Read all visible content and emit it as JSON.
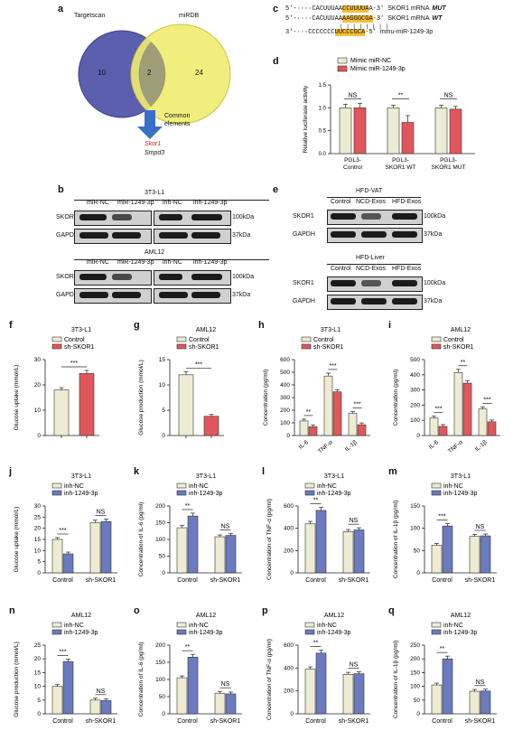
{
  "a": {
    "label": "a",
    "venn_left": "Targetscan",
    "venn_right": "miRDB",
    "left_only": "10",
    "overlap": "2",
    "right_only": "24",
    "arrow_label": "Common\nelements",
    "gene1": "Skor1",
    "gene2": "Smpd3"
  },
  "c": {
    "label": "c",
    "rows": [
      {
        "prime5": "5'-",
        "seq_pre": "····CACUUUAA",
        "seq_hl": "CCUUUUA",
        "seq_post": "A",
        "prime3": "-3'",
        "name": "SKOR1 mRNA",
        "tag": "MUT"
      },
      {
        "prime5": "5'-",
        "seq_pre": "····CACUUUAA",
        "seq_hl": "AAGGGCGA",
        "seq_post": "",
        "prime3": "-3'",
        "name": "SKOR1 mRNA",
        "tag": "WT"
      },
      {
        "prime5": "3'-",
        "seq_pre": "···CCCCCCC",
        "seq_hl": "UUCCCGCA",
        "seq_post": "",
        "prime3": "-5'",
        "name": "mmu-miR-1249-3p",
        "tag": ""
      }
    ],
    "pairs": "| | | | | | | |"
  },
  "d": {
    "label": "d",
    "legend": [
      "Mimic miR-NC",
      "Mimic miR-1249-3p"
    ],
    "ylabel": "Relative luciferase activity",
    "yticks": [
      "0.0",
      "0.5",
      "1.0",
      "1.5"
    ],
    "sig": [
      "NS",
      "**",
      "NS"
    ],
    "groups": [
      "PGL3-\nControl",
      "PGL3-\nSKOR1 WT",
      "PGL3-\nSKOR1 MUT"
    ]
  },
  "b": {
    "label": "b",
    "cell1": "3T3-L1",
    "cell2": "AML12",
    "lanes_left": [
      "miR-NC",
      "miR-1249-3p"
    ],
    "lanes_right": [
      "inh-NC",
      "inh-1249-3p"
    ],
    "row1": "SKOR1",
    "row2": "GAPDH",
    "kda1": "100kDa",
    "kda2": "37kDa"
  },
  "e": {
    "label": "e",
    "tissue1": "HFD-VAT",
    "tissue2": "HFD-Liver",
    "lanes": [
      "Control",
      "NCD-Exos",
      "HFD-Exos"
    ],
    "row1": "SKOR1",
    "row2": "GAPDH",
    "kda1": "100kDa",
    "kda2": "37kDa"
  },
  "colors": {
    "control": "#eeebd3",
    "sh": "#e0575b",
    "inhnc": "#efebd2",
    "inh": "#6a7bbf",
    "venn_left": "#5b5fae",
    "venn_right": "#f0ec70",
    "seq_highlight": "#f6bf38",
    "gene_red": "#d42020"
  },
  "chart_data": [
    {
      "panel": "f",
      "type": "bar",
      "title": "3T3-L1",
      "ylabel": "Glucose uptake (mmol/L)",
      "ylim": [
        0,
        30
      ],
      "yticks": [
        0,
        10,
        20,
        30
      ],
      "legend": [
        "Control",
        "sh-SKOR1"
      ],
      "series": [
        {
          "name": "Control",
          "values": [
            18
          ]
        },
        {
          "name": "sh-SKOR1",
          "values": [
            24.5
          ]
        }
      ],
      "sig": [
        "***"
      ]
    },
    {
      "panel": "g",
      "type": "bar",
      "title": "AML12",
      "ylabel": "Glucose production (mmol/L)",
      "ylim": [
        0,
        15
      ],
      "yticks": [
        0,
        5,
        10,
        15
      ],
      "legend": [
        "Control",
        "sh-SKOR1"
      ],
      "series": [
        {
          "name": "Control",
          "values": [
            12
          ]
        },
        {
          "name": "sh-SKOR1",
          "values": [
            3.8
          ]
        }
      ],
      "sig": [
        "***"
      ]
    },
    {
      "panel": "h",
      "type": "bar",
      "title": "3T3-L1",
      "ylabel": "Concentration (pg/ml)",
      "ylim": [
        0,
        600
      ],
      "yticks": [
        0,
        100,
        200,
        300,
        400,
        500,
        600
      ],
      "legend": [
        "Control",
        "sh-SKOR1"
      ],
      "categories": [
        "IL-6",
        "TNF-α",
        "IL-1β"
      ],
      "series": [
        {
          "name": "Control",
          "values": [
            115,
            470,
            175
          ]
        },
        {
          "name": "sh-SKOR1",
          "values": [
            70,
            345,
            85
          ]
        }
      ],
      "sig": [
        "**",
        "***",
        "***"
      ]
    },
    {
      "panel": "i",
      "type": "bar",
      "title": "AML12",
      "ylabel": "Concentration (pg/ml)",
      "ylim": [
        0,
        500
      ],
      "yticks": [
        0,
        100,
        200,
        300,
        400,
        500
      ],
      "legend": [
        "Control",
        "sh-SKOR1"
      ],
      "categories": [
        "IL-6",
        "TNF-α",
        "IL-1β"
      ],
      "series": [
        {
          "name": "Control",
          "values": [
            115,
            415,
            175
          ]
        },
        {
          "name": "sh-SKOR1",
          "values": [
            60,
            345,
            90
          ]
        }
      ],
      "sig": [
        "***",
        "**",
        "***"
      ]
    },
    {
      "panel": "j",
      "type": "bar",
      "title": "3T3-L1",
      "ylabel": "Glucose uptake (mmol/L)",
      "ylim": [
        0,
        30
      ],
      "yticks": [
        0,
        5,
        10,
        15,
        20,
        25,
        30
      ],
      "legend": [
        "inh-NC",
        "inh-1249-3p"
      ],
      "categories": [
        "Control",
        "sh-SKOR1"
      ],
      "series": [
        {
          "name": "inh-NC",
          "values": [
            15,
            22.5
          ]
        },
        {
          "name": "inh-1249-3p",
          "values": [
            8.5,
            23
          ]
        }
      ],
      "sig": [
        "***",
        "NS"
      ]
    },
    {
      "panel": "k",
      "type": "bar",
      "title": "3T3-L1",
      "ylabel": "Concentration of IL-6 (pg/ml)",
      "ylim": [
        0,
        200
      ],
      "yticks": [
        0,
        50,
        100,
        150,
        200
      ],
      "legend": [
        "inh-NC",
        "inh-1249-3p"
      ],
      "categories": [
        "Control",
        "sh-SKOR1"
      ],
      "series": [
        {
          "name": "inh-NC",
          "values": [
            135,
            108
          ]
        },
        {
          "name": "inh-1249-3p",
          "values": [
            170,
            112
          ]
        }
      ],
      "sig": [
        "**",
        "NS"
      ]
    },
    {
      "panel": "l",
      "type": "bar",
      "title": "3T3-L1",
      "ylabel": "Concentration of TNF-α (pg/ml)",
      "ylim": [
        0,
        600
      ],
      "yticks": [
        0,
        200,
        400,
        600
      ],
      "legend": [
        "inh-NC",
        "inh-1249-3p"
      ],
      "categories": [
        "Control",
        "sh-SKOR1"
      ],
      "series": [
        {
          "name": "inh-NC",
          "values": [
            440,
            370
          ]
        },
        {
          "name": "inh-1249-3p",
          "values": [
            560,
            385
          ]
        }
      ],
      "sig": [
        "**",
        "NS"
      ]
    },
    {
      "panel": "m",
      "type": "bar",
      "title": "3T3-L1",
      "ylabel": "Concentration of IL-1β (pg/ml)",
      "ylim": [
        0,
        150
      ],
      "yticks": [
        0,
        50,
        100,
        150
      ],
      "legend": [
        "inh-NC",
        "inh-1249-3p"
      ],
      "categories": [
        "Control",
        "sh-SKOR1"
      ],
      "series": [
        {
          "name": "inh-NC",
          "values": [
            62,
            82
          ]
        },
        {
          "name": "inh-1249-3p",
          "values": [
            105,
            83
          ]
        }
      ],
      "sig": [
        "***",
        "NS"
      ]
    },
    {
      "panel": "n",
      "type": "bar",
      "title": "AML12",
      "ylabel": "Glucose production (mmol/L)",
      "ylim": [
        0,
        25
      ],
      "yticks": [
        0,
        5,
        10,
        15,
        20,
        25
      ],
      "legend": [
        "inh-NC",
        "inh-1249-3p"
      ],
      "categories": [
        "Control",
        "sh-SKOR1"
      ],
      "series": [
        {
          "name": "inh-NC",
          "values": [
            10,
            5
          ]
        },
        {
          "name": "inh-1249-3p",
          "values": [
            19,
            4.8
          ]
        }
      ],
      "sig": [
        "***",
        "NS"
      ]
    },
    {
      "panel": "o",
      "type": "bar",
      "title": "AML12",
      "ylabel": "Concentration of IL-6 (pg/ml)",
      "ylim": [
        0,
        200
      ],
      "yticks": [
        0,
        50,
        100,
        150,
        200
      ],
      "legend": [
        "inh-NC",
        "inh-1249-3p"
      ],
      "categories": [
        "Control",
        "sh-SKOR1"
      ],
      "series": [
        {
          "name": "inh-NC",
          "values": [
            105,
            60
          ]
        },
        {
          "name": "inh-1249-3p",
          "values": [
            165,
            58
          ]
        }
      ],
      "sig": [
        "**",
        "NS"
      ]
    },
    {
      "panel": "p",
      "type": "bar",
      "title": "AML12",
      "ylabel": "Concentration of TNF-α (pg/ml)",
      "ylim": [
        0,
        600
      ],
      "yticks": [
        0,
        200,
        400,
        600
      ],
      "legend": [
        "inh-NC",
        "inh-1249-3p"
      ],
      "categories": [
        "Control",
        "sh-SKOR1"
      ],
      "series": [
        {
          "name": "inh-NC",
          "values": [
            390,
            345
          ]
        },
        {
          "name": "inh-1249-3p",
          "values": [
            530,
            350
          ]
        }
      ],
      "sig": [
        "**",
        "NS"
      ]
    },
    {
      "panel": "q",
      "type": "bar",
      "title": "AML12",
      "ylabel": "Concentration of IL-1β (pg/ml)",
      "ylim": [
        0,
        250
      ],
      "yticks": [
        0,
        50,
        100,
        150,
        200,
        250
      ],
      "legend": [
        "inh-NC",
        "inh-1249-3p"
      ],
      "categories": [
        "Control",
        "sh-SKOR1"
      ],
      "series": [
        {
          "name": "inh-NC",
          "values": [
            105,
            82
          ]
        },
        {
          "name": "inh-1249-3p",
          "values": [
            200,
            83
          ]
        }
      ],
      "sig": [
        "**",
        "NS"
      ]
    }
  ]
}
